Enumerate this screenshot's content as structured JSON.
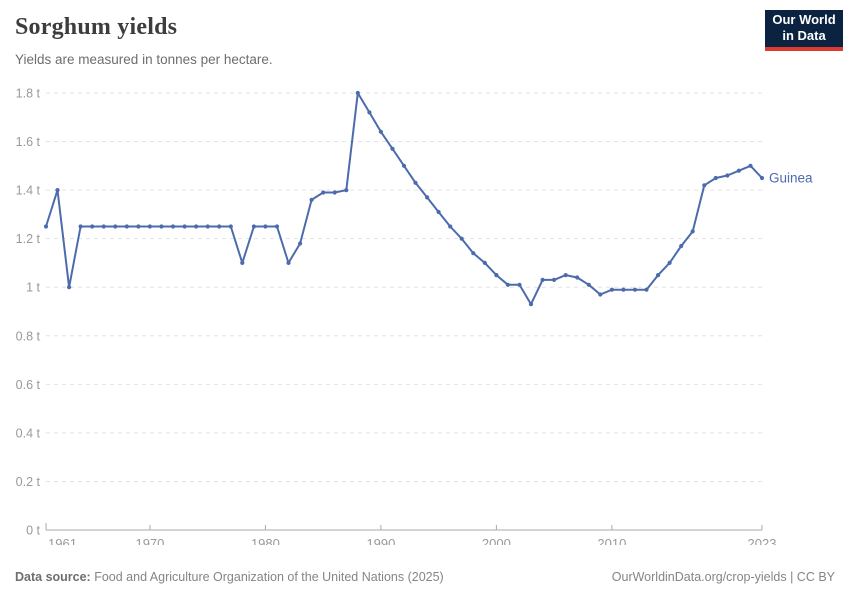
{
  "header": {
    "title": "Sorghum yields",
    "subtitle": "Yields are measured in tonnes per hectare.",
    "logo_line1": "Our World",
    "logo_line2": "in Data"
  },
  "chart_data": {
    "type": "line",
    "title": "Sorghum yields",
    "ylabel": "tonnes per hectare",
    "xlabel": "",
    "xlim": [
      1961,
      2023
    ],
    "ylim": [
      0,
      1.8
    ],
    "grid": "horizontal-dashed",
    "legend_position": "end-of-line-label",
    "x_ticks": [
      1961,
      1970,
      1980,
      1990,
      2000,
      2010,
      2023
    ],
    "y_ticks": [
      0,
      0.2,
      0.4,
      0.6,
      0.8,
      1.0,
      1.2,
      1.4,
      1.6,
      1.8
    ],
    "y_tick_labels": [
      "0 t",
      "0.2 t",
      "0.4 t",
      "0.6 t",
      "0.8 t",
      "1 t",
      "1.2 t",
      "1.4 t",
      "1.6 t",
      "1.8 t"
    ],
    "series": [
      {
        "name": "Guinea",
        "color": "#4c6bac",
        "x": [
          1961,
          1962,
          1963,
          1964,
          1965,
          1966,
          1967,
          1968,
          1969,
          1970,
          1971,
          1972,
          1973,
          1974,
          1975,
          1976,
          1977,
          1978,
          1979,
          1980,
          1981,
          1982,
          1983,
          1984,
          1985,
          1986,
          1987,
          1988,
          1989,
          1990,
          1991,
          1992,
          1993,
          1994,
          1995,
          1996,
          1997,
          1998,
          1999,
          2000,
          2001,
          2002,
          2003,
          2004,
          2005,
          2006,
          2007,
          2008,
          2009,
          2010,
          2011,
          2012,
          2013,
          2014,
          2015,
          2016,
          2017,
          2018,
          2019,
          2020,
          2021,
          2022,
          2023
        ],
        "values": [
          1.25,
          1.4,
          1.0,
          1.25,
          1.25,
          1.25,
          1.25,
          1.25,
          1.25,
          1.25,
          1.25,
          1.25,
          1.25,
          1.25,
          1.25,
          1.25,
          1.25,
          1.1,
          1.25,
          1.25,
          1.25,
          1.1,
          1.18,
          1.36,
          1.39,
          1.39,
          1.4,
          1.8,
          1.72,
          1.64,
          1.57,
          1.5,
          1.43,
          1.37,
          1.31,
          1.25,
          1.2,
          1.14,
          1.1,
          1.05,
          1.01,
          1.01,
          0.93,
          1.03,
          1.03,
          1.05,
          1.04,
          1.01,
          0.97,
          0.99,
          0.99,
          0.99,
          0.99,
          1.05,
          1.1,
          1.17,
          1.23,
          1.42,
          1.45,
          1.46,
          1.48,
          1.5,
          1.45
        ]
      }
    ]
  },
  "footer": {
    "source_label": "Data source:",
    "source_text": " Food and Agriculture Organization of the United Nations (2025)",
    "license_text": "OurWorldinData.org/crop-yields | CC BY"
  },
  "colors": {
    "accent_line": "#4c6bac",
    "grid": "#e2e2e2",
    "axis": "#a9a9a9",
    "tick_text": "#999999",
    "logo_bg": "#0b2341",
    "logo_red": "#dc3b31"
  }
}
